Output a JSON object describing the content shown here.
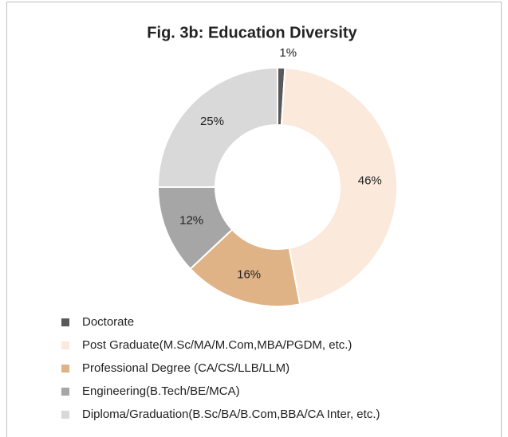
{
  "chart_data": {
    "type": "donut",
    "title": "Fig. 3b: Education Diversity",
    "series": [
      {
        "name": "Doctorate",
        "color": "#595959",
        "values": [
          1
        ],
        "value_labels": [
          "1%"
        ]
      },
      {
        "name": "Post Graduate(M.Sc/MA/M.Com,MBA/PGDM, etc.)",
        "color": "#fbe9dc",
        "values": [
          46
        ],
        "value_labels": [
          "46%"
        ]
      },
      {
        "name": "Professional Degree (CA/CS/LLB/LLM)",
        "color": "#e0b387",
        "values": [
          16
        ],
        "value_labels": [
          "16%"
        ]
      },
      {
        "name": "Engineering(B.Tech/BE/MCA)",
        "color": "#a6a6a6",
        "values": [
          12
        ],
        "value_labels": [
          "12%"
        ]
      },
      {
        "name": "Diploma/Graduation(B.Sc/BA/B.Com,BBA/CA Inter, etc.)",
        "color": "#d9d9d9",
        "values": [
          25
        ],
        "value_labels": [
          "25%"
        ]
      }
    ],
    "legend": "bottom-left"
  }
}
